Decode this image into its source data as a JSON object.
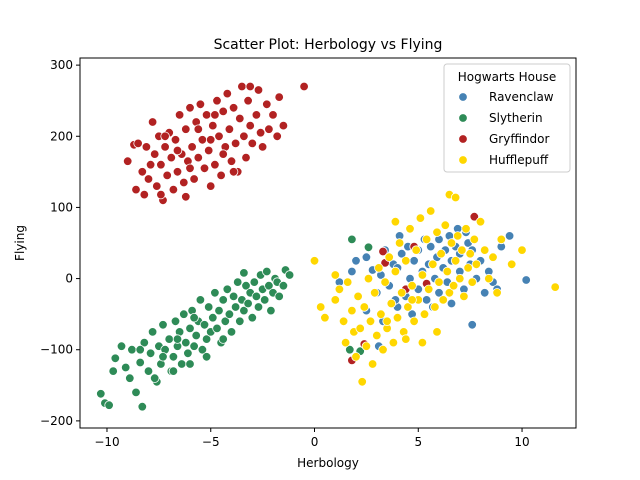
{
  "chart_data": {
    "type": "scatter",
    "title": "Scatter Plot: Herbology vs Flying",
    "xlabel": "Herbology",
    "ylabel": "Flying",
    "xlim": [
      -11.3,
      12.6
    ],
    "ylim": [
      -210,
      310
    ],
    "xticks": [
      -10,
      -5,
      0,
      5,
      10
    ],
    "yticks": [
      -200,
      -100,
      0,
      100,
      200,
      300
    ],
    "grid": false,
    "legend": {
      "title": "Hogwarts House",
      "placement": "top-right"
    },
    "series": [
      {
        "name": "Ravenclaw",
        "color": "#4682b4",
        "points": [
          [
            1.2,
            -5
          ],
          [
            1.8,
            10
          ],
          [
            2.0,
            25
          ],
          [
            2.5,
            30
          ],
          [
            2.8,
            12
          ],
          [
            3.0,
            -20
          ],
          [
            3.2,
            5
          ],
          [
            3.4,
            40
          ],
          [
            3.6,
            -10
          ],
          [
            3.8,
            20
          ],
          [
            4.0,
            -40
          ],
          [
            4.0,
            15
          ],
          [
            4.2,
            35
          ],
          [
            4.4,
            -25
          ],
          [
            4.5,
            45
          ],
          [
            4.6,
            0
          ],
          [
            4.8,
            25
          ],
          [
            5.0,
            -15
          ],
          [
            5.0,
            40
          ],
          [
            5.2,
            10
          ],
          [
            5.3,
            55
          ],
          [
            5.4,
            -30
          ],
          [
            5.5,
            20
          ],
          [
            5.6,
            45
          ],
          [
            5.8,
            0
          ],
          [
            5.9,
            30
          ],
          [
            6.0,
            -20
          ],
          [
            6.0,
            55
          ],
          [
            6.2,
            15
          ],
          [
            6.3,
            40
          ],
          [
            6.4,
            -5
          ],
          [
            6.5,
            60
          ],
          [
            6.6,
            25
          ],
          [
            6.8,
            45
          ],
          [
            7.0,
            10
          ],
          [
            7.0,
            35
          ],
          [
            7.2,
            -15
          ],
          [
            7.4,
            50
          ],
          [
            7.5,
            20
          ],
          [
            7.6,
            40
          ],
          [
            7.8,
            0
          ],
          [
            8.0,
            25
          ],
          [
            8.2,
            -20
          ],
          [
            8.4,
            10
          ],
          [
            8.6,
            -5
          ],
          [
            9.0,
            45
          ],
          [
            9.4,
            60
          ],
          [
            10.2,
            -2
          ],
          [
            2.5,
            -45
          ],
          [
            3.3,
            -60
          ],
          [
            3.9,
            -30
          ],
          [
            4.7,
            -50
          ],
          [
            5.7,
            -40
          ],
          [
            6.6,
            -35
          ],
          [
            7.6,
            -65
          ],
          [
            3.1,
            -95
          ],
          [
            8.8,
            -15
          ],
          [
            4.1,
            60
          ],
          [
            6.9,
            70
          ],
          [
            7.3,
            65
          ]
        ]
      },
      {
        "name": "Slytherin",
        "color": "#2e8b57",
        "points": [
          [
            -10.3,
            -162
          ],
          [
            -10.1,
            -175
          ],
          [
            -9.9,
            -178
          ],
          [
            -9.7,
            -130
          ],
          [
            -9.6,
            -112
          ],
          [
            -9.3,
            -95
          ],
          [
            -9.1,
            -125
          ],
          [
            -8.9,
            -140
          ],
          [
            -8.8,
            -100
          ],
          [
            -8.6,
            -160
          ],
          [
            -8.4,
            -118
          ],
          [
            -8.3,
            -180
          ],
          [
            -8.2,
            -90
          ],
          [
            -8.0,
            -130
          ],
          [
            -7.9,
            -105
          ],
          [
            -7.8,
            -75
          ],
          [
            -7.6,
            -145
          ],
          [
            -7.5,
            -95
          ],
          [
            -7.4,
            -120
          ],
          [
            -7.3,
            -65
          ],
          [
            -7.2,
            -100
          ],
          [
            -7.0,
            -85
          ],
          [
            -6.9,
            -130
          ],
          [
            -6.8,
            -110
          ],
          [
            -6.7,
            -60
          ],
          [
            -6.6,
            -95
          ],
          [
            -6.5,
            -75
          ],
          [
            -6.4,
            -120
          ],
          [
            -6.3,
            -50
          ],
          [
            -6.2,
            -90
          ],
          [
            -6.1,
            -105
          ],
          [
            -6.0,
            -70
          ],
          [
            -5.9,
            -45
          ],
          [
            -5.8,
            -95
          ],
          [
            -5.7,
            -80
          ],
          [
            -5.6,
            -60
          ],
          [
            -5.5,
            -30
          ],
          [
            -5.4,
            -100
          ],
          [
            -5.3,
            -65
          ],
          [
            -5.2,
            -85
          ],
          [
            -5.1,
            -40
          ],
          [
            -5.0,
            -75
          ],
          [
            -4.9,
            -55
          ],
          [
            -4.8,
            -20
          ],
          [
            -4.7,
            -70
          ],
          [
            -4.6,
            -45
          ],
          [
            -4.5,
            -90
          ],
          [
            -4.4,
            -30
          ],
          [
            -4.3,
            -60
          ],
          [
            -4.2,
            -15
          ],
          [
            -4.1,
            -50
          ],
          [
            -4.0,
            -75
          ],
          [
            -3.9,
            -25
          ],
          [
            -3.8,
            -40
          ],
          [
            -3.7,
            -5
          ],
          [
            -3.6,
            -60
          ],
          [
            -3.5,
            -30
          ],
          [
            -3.4,
            -45
          ],
          [
            -3.3,
            -10
          ],
          [
            -3.2,
            -35
          ],
          [
            -3.1,
            -20
          ],
          [
            -3.0,
            -55
          ],
          [
            -2.9,
            -5
          ],
          [
            -2.8,
            -25
          ],
          [
            -2.7,
            -40
          ],
          [
            -2.6,
            5
          ],
          [
            -2.5,
            -15
          ],
          [
            -2.4,
            -30
          ],
          [
            -2.3,
            10
          ],
          [
            -2.2,
            -10
          ],
          [
            -2.1,
            -45
          ],
          [
            -2.0,
            -20
          ],
          [
            -1.9,
            0
          ],
          [
            -1.8,
            -5
          ],
          [
            -1.7,
            -25
          ],
          [
            -1.5,
            -10
          ],
          [
            -1.4,
            12
          ],
          [
            -1.2,
            5
          ],
          [
            -3.4,
            8
          ],
          [
            -6.8,
            -130
          ],
          [
            -7.7,
            -140
          ],
          [
            -5.2,
            -110
          ],
          [
            -8.4,
            -100
          ],
          [
            -6.0,
            -120
          ],
          [
            -4.4,
            -85
          ],
          [
            -6.6,
            -85
          ],
          [
            -7.3,
            -110
          ],
          [
            -5.8,
            -55
          ],
          [
            1.7,
            -100
          ],
          [
            2.2,
            -102
          ],
          [
            1.8,
            55
          ],
          [
            2.6,
            44
          ]
        ]
      },
      {
        "name": "Gryffindor",
        "color": "#b22222",
        "points": [
          [
            -9.0,
            165
          ],
          [
            -8.7,
            188
          ],
          [
            -8.6,
            125
          ],
          [
            -8.5,
            190
          ],
          [
            -8.3,
            150
          ],
          [
            -8.2,
            118
          ],
          [
            -8.1,
            185
          ],
          [
            -8.0,
            140
          ],
          [
            -7.9,
            160
          ],
          [
            -7.8,
            220
          ],
          [
            -7.7,
            175
          ],
          [
            -7.6,
            130
          ],
          [
            -7.5,
            200
          ],
          [
            -7.4,
            160
          ],
          [
            -7.3,
            110
          ],
          [
            -7.2,
            185
          ],
          [
            -7.1,
            145
          ],
          [
            -7.0,
            205
          ],
          [
            -6.9,
            170
          ],
          [
            -6.8,
            125
          ],
          [
            -6.7,
            195
          ],
          [
            -6.6,
            150
          ],
          [
            -6.5,
            230
          ],
          [
            -6.4,
            175
          ],
          [
            -6.3,
            135
          ],
          [
            -6.2,
            210
          ],
          [
            -6.1,
            165
          ],
          [
            -6.0,
            240
          ],
          [
            -5.9,
            185
          ],
          [
            -5.8,
            140
          ],
          [
            -5.7,
            220
          ],
          [
            -5.6,
            170
          ],
          [
            -5.5,
            245
          ],
          [
            -5.4,
            195
          ],
          [
            -5.3,
            155
          ],
          [
            -5.2,
            230
          ],
          [
            -5.1,
            180
          ],
          [
            -5.0,
            130
          ],
          [
            -4.9,
            215
          ],
          [
            -4.8,
            160
          ],
          [
            -4.7,
            250
          ],
          [
            -4.6,
            200
          ],
          [
            -4.5,
            145
          ],
          [
            -4.4,
            235
          ],
          [
            -4.3,
            185
          ],
          [
            -4.2,
            260
          ],
          [
            -4.1,
            210
          ],
          [
            -4.0,
            165
          ],
          [
            -3.9,
            240
          ],
          [
            -3.8,
            190
          ],
          [
            -3.7,
            150
          ],
          [
            -3.6,
            225
          ],
          [
            -3.5,
            270
          ],
          [
            -3.4,
            200
          ],
          [
            -3.3,
            170
          ],
          [
            -3.2,
            250
          ],
          [
            -3.1,
            215
          ],
          [
            -3.0,
            190
          ],
          [
            -2.8,
            230
          ],
          [
            -2.7,
            265
          ],
          [
            -2.6,
            205
          ],
          [
            -2.5,
            185
          ],
          [
            -2.3,
            245
          ],
          [
            -2.2,
            210
          ],
          [
            -2.0,
            230
          ],
          [
            -1.8,
            200
          ],
          [
            -1.7,
            255
          ],
          [
            -1.5,
            215
          ],
          [
            -0.5,
            270
          ],
          [
            -3.9,
            150
          ],
          [
            -6.6,
            180
          ],
          [
            -5.0,
            195
          ],
          [
            -4.4,
            175
          ],
          [
            -6.0,
            155
          ],
          [
            -7.2,
            200
          ],
          [
            -5.6,
            210
          ],
          [
            -4.8,
            230
          ],
          [
            -3.1,
            270
          ],
          [
            -6.2,
            115
          ],
          [
            -7.4,
            118
          ],
          [
            3.3,
            38
          ],
          [
            3.4,
            22
          ],
          [
            4.8,
            45
          ],
          [
            5.4,
            -7
          ],
          [
            7.7,
            87
          ],
          [
            4.4,
            -15
          ],
          [
            1.8,
            -115
          ],
          [
            2.4,
            -92
          ]
        ]
      },
      {
        "name": "Hufflepuff",
        "color": "#ffd700",
        "points": [
          [
            0.0,
            25
          ],
          [
            0.3,
            -40
          ],
          [
            0.5,
            -55
          ],
          [
            1.0,
            -30
          ],
          [
            1.2,
            -15
          ],
          [
            1.4,
            -60
          ],
          [
            1.5,
            -90
          ],
          [
            1.6,
            -5
          ],
          [
            1.8,
            -45
          ],
          [
            1.9,
            -75
          ],
          [
            2.0,
            -110
          ],
          [
            2.1,
            -25
          ],
          [
            2.2,
            -70
          ],
          [
            2.3,
            -145
          ],
          [
            2.4,
            -40
          ],
          [
            2.5,
            -95
          ],
          [
            2.6,
            0
          ],
          [
            2.7,
            -60
          ],
          [
            2.8,
            -120
          ],
          [
            2.9,
            -20
          ],
          [
            3.0,
            -80
          ],
          [
            3.1,
            15
          ],
          [
            3.2,
            -50
          ],
          [
            3.3,
            -100
          ],
          [
            3.4,
            -5
          ],
          [
            3.5,
            -70
          ],
          [
            3.6,
            30
          ],
          [
            3.7,
            -35
          ],
          [
            3.8,
            -90
          ],
          [
            3.9,
            10
          ],
          [
            4.0,
            -55
          ],
          [
            4.1,
            50
          ],
          [
            4.2,
            -20
          ],
          [
            4.3,
            -75
          ],
          [
            4.4,
            25
          ],
          [
            4.5,
            -40
          ],
          [
            4.6,
            70
          ],
          [
            4.7,
            -10
          ],
          [
            4.8,
            -60
          ],
          [
            4.9,
            40
          ],
          [
            5.0,
            -30
          ],
          [
            5.1,
            85
          ],
          [
            5.2,
            5
          ],
          [
            5.3,
            -50
          ],
          [
            5.4,
            55
          ],
          [
            5.5,
            -15
          ],
          [
            5.6,
            95
          ],
          [
            5.7,
            20
          ],
          [
            5.8,
            -40
          ],
          [
            5.9,
            65
          ],
          [
            6.0,
            -5
          ],
          [
            6.1,
            35
          ],
          [
            6.2,
            -30
          ],
          [
            6.3,
            75
          ],
          [
            6.4,
            10
          ],
          [
            6.5,
            -20
          ],
          [
            6.6,
            50
          ],
          [
            6.7,
            -10
          ],
          [
            6.8,
            25
          ],
          [
            6.9,
            60
          ],
          [
            7.0,
            0
          ],
          [
            7.1,
            40
          ],
          [
            7.2,
            -25
          ],
          [
            7.3,
            70
          ],
          [
            7.4,
            15
          ],
          [
            7.5,
            35
          ],
          [
            7.6,
            -5
          ],
          [
            7.7,
            55
          ],
          [
            7.8,
            20
          ],
          [
            8.0,
            80
          ],
          [
            8.2,
            40
          ],
          [
            8.4,
            0
          ],
          [
            8.6,
            30
          ],
          [
            8.8,
            -20
          ],
          [
            9.0,
            55
          ],
          [
            9.5,
            20
          ],
          [
            10.0,
            40
          ],
          [
            11.6,
            -12
          ],
          [
            1.0,
            5
          ],
          [
            3.9,
            80
          ],
          [
            4.4,
            -85
          ],
          [
            6.5,
            118
          ],
          [
            6.8,
            114
          ],
          [
            5.2,
            -90
          ],
          [
            3.5,
            -60
          ],
          [
            4.7,
            -30
          ],
          [
            5.9,
            -75
          ]
        ]
      }
    ]
  }
}
